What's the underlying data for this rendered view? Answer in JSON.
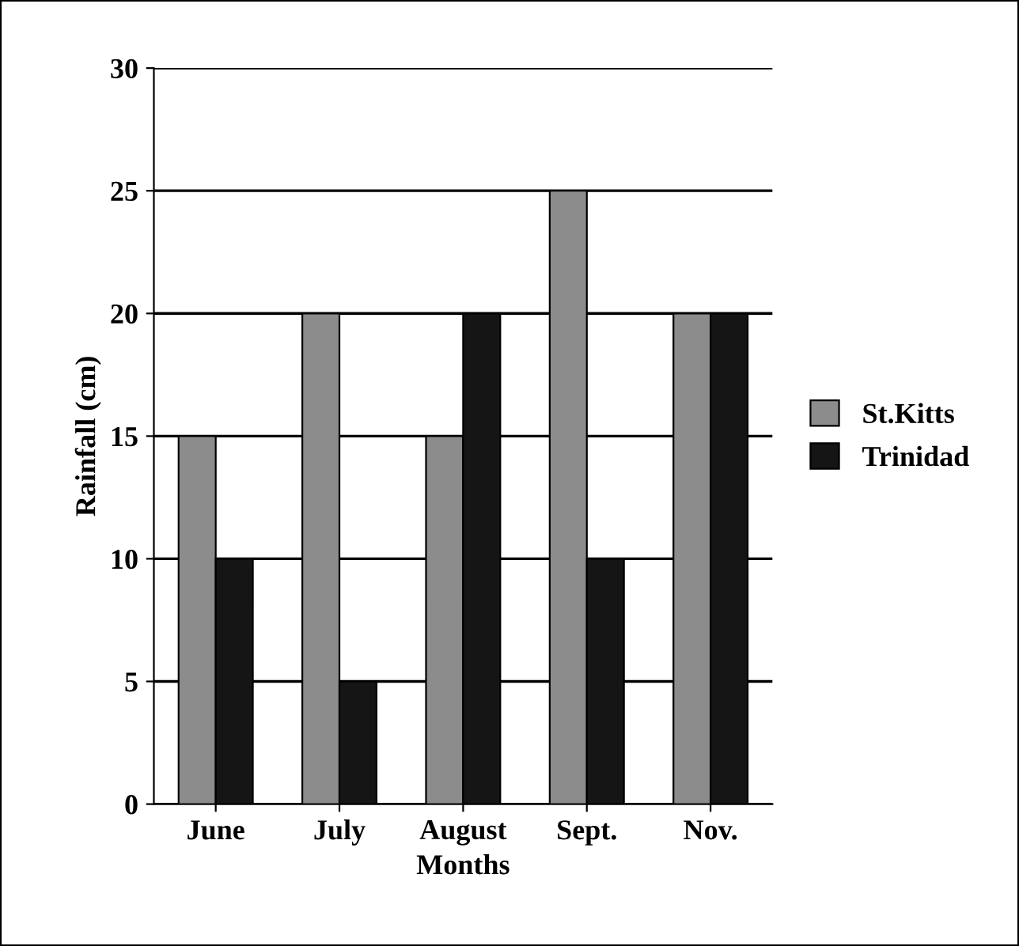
{
  "chart_data": {
    "type": "bar",
    "xlabel": "Months",
    "ylabel": "Rainfall (cm)",
    "categories": [
      "June",
      "July",
      "August",
      "Sept.",
      "Nov."
    ],
    "series": [
      {
        "name": "St.Kitts",
        "color": "#8c8c8c",
        "values": [
          15,
          20,
          15,
          25,
          20
        ]
      },
      {
        "name": "Trinidad",
        "color": "#151515",
        "values": [
          10,
          5,
          20,
          10,
          20
        ]
      }
    ],
    "ylim": [
      0,
      30
    ],
    "yticks": [
      0,
      5,
      10,
      15,
      20,
      25,
      30
    ],
    "grid": "y",
    "legend": "right"
  }
}
